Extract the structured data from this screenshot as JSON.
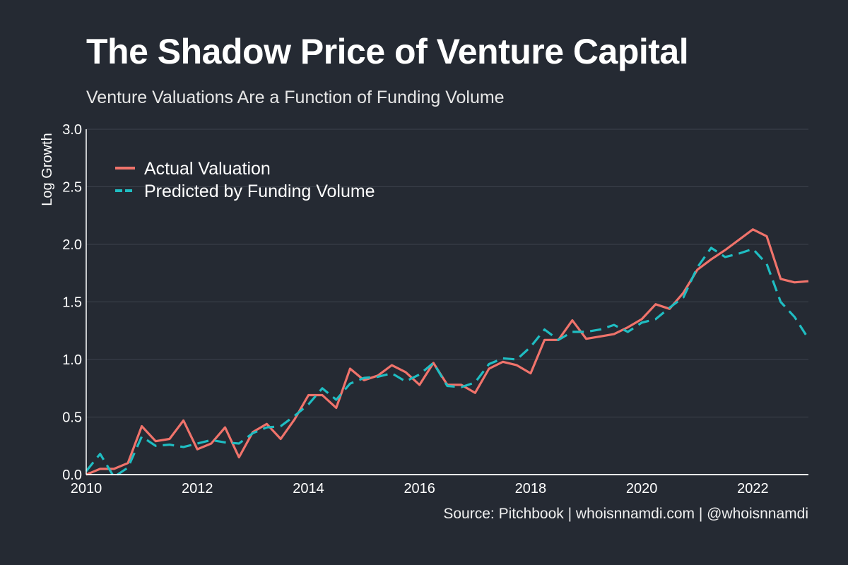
{
  "title": "The Shadow Price of Venture Capital",
  "subtitle": "Venture Valuations Are a Function of Funding Volume",
  "source": "Source: Pitchbook | whoisnnamdi.com | @whoisnnamdi",
  "colors": {
    "background": "#252a33",
    "actual": "#f0736b",
    "predicted": "#1fbdc2",
    "grid": "#3d434d",
    "axis": "#ffffff"
  },
  "chart_data": {
    "type": "line",
    "title": "The Shadow Price of Venture Capital",
    "subtitle": "Venture Valuations Are a Function of Funding Volume",
    "xlabel": "",
    "ylabel": "Log Growth",
    "xlim": [
      2010,
      2023
    ],
    "ylim": [
      0,
      3.0
    ],
    "x_ticks": [
      "2010",
      "2012",
      "2014",
      "2016",
      "2018",
      "2020",
      "2022"
    ],
    "y_ticks": [
      "0.0",
      "0.5",
      "1.0",
      "1.5",
      "2.0",
      "2.5",
      "3.0"
    ],
    "grid": "horizontal",
    "legend": {
      "position": "top-left",
      "entries": [
        "Actual Valuation",
        "Predicted by Funding Volume"
      ]
    },
    "series": [
      {
        "name": "Actual Valuation",
        "style": "solid",
        "x": [
          2010.0,
          2010.25,
          2010.5,
          2010.75,
          2011.0,
          2011.25,
          2011.5,
          2011.75,
          2012.0,
          2012.25,
          2012.5,
          2012.75,
          2013.0,
          2013.25,
          2013.5,
          2013.75,
          2014.0,
          2014.25,
          2014.5,
          2014.75,
          2015.0,
          2015.25,
          2015.5,
          2015.75,
          2016.0,
          2016.25,
          2016.5,
          2016.75,
          2017.0,
          2017.25,
          2017.5,
          2017.75,
          2018.0,
          2018.25,
          2018.5,
          2018.75,
          2019.0,
          2019.25,
          2019.5,
          2019.75,
          2020.0,
          2020.25,
          2020.5,
          2020.75,
          2021.0,
          2021.25,
          2021.5,
          2021.75,
          2022.0,
          2022.25,
          2022.5,
          2022.75,
          2023.0
        ],
        "values": [
          0.0,
          0.05,
          0.05,
          0.1,
          0.42,
          0.29,
          0.31,
          0.47,
          0.22,
          0.27,
          0.41,
          0.15,
          0.37,
          0.44,
          0.31,
          0.48,
          0.69,
          0.69,
          0.58,
          0.92,
          0.82,
          0.86,
          0.95,
          0.89,
          0.78,
          0.97,
          0.78,
          0.78,
          0.71,
          0.92,
          0.98,
          0.95,
          0.88,
          1.17,
          1.17,
          1.34,
          1.18,
          1.2,
          1.22,
          1.28,
          1.35,
          1.48,
          1.44,
          1.58,
          1.78,
          1.87,
          1.95,
          2.04,
          2.13,
          2.07,
          1.7,
          1.67,
          1.68
        ]
      },
      {
        "name": "Predicted by Funding Volume",
        "style": "dashed",
        "x": [
          2010.0,
          2010.25,
          2010.5,
          2010.75,
          2011.0,
          2011.25,
          2011.5,
          2011.75,
          2012.0,
          2012.25,
          2012.5,
          2012.75,
          2013.0,
          2013.25,
          2013.5,
          2013.75,
          2014.0,
          2014.25,
          2014.5,
          2014.75,
          2015.0,
          2015.25,
          2015.5,
          2015.75,
          2016.0,
          2016.25,
          2016.5,
          2016.75,
          2017.0,
          2017.25,
          2017.5,
          2017.75,
          2018.0,
          2018.25,
          2018.5,
          2018.75,
          2019.0,
          2019.25,
          2019.5,
          2019.75,
          2020.0,
          2020.25,
          2020.5,
          2020.75,
          2021.0,
          2021.25,
          2021.5,
          2021.75,
          2022.0,
          2022.25,
          2022.5,
          2022.75,
          2023.0
        ],
        "values": [
          0.03,
          0.18,
          -0.02,
          0.06,
          0.33,
          0.25,
          0.26,
          0.24,
          0.27,
          0.3,
          0.28,
          0.27,
          0.36,
          0.41,
          0.42,
          0.51,
          0.61,
          0.75,
          0.65,
          0.79,
          0.84,
          0.85,
          0.88,
          0.81,
          0.87,
          0.97,
          0.77,
          0.76,
          0.8,
          0.96,
          1.01,
          1.0,
          1.11,
          1.26,
          1.17,
          1.24,
          1.24,
          1.26,
          1.3,
          1.24,
          1.32,
          1.35,
          1.45,
          1.54,
          1.8,
          1.97,
          1.89,
          1.92,
          1.96,
          1.83,
          1.5,
          1.37,
          1.18
        ]
      }
    ]
  }
}
